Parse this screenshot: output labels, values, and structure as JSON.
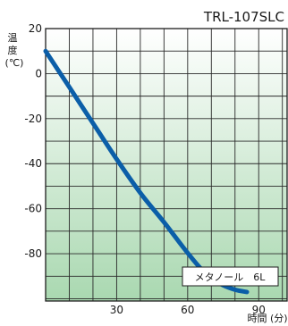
{
  "chart_data": {
    "type": "line",
    "title": "TRL-107SLC",
    "ylabel_chars": [
      "温",
      "度"
    ],
    "ylabel_unit": "(℃)",
    "xlabel": "時間 (分)",
    "xlim": [
      0,
      102
    ],
    "ylim": [
      -101,
      20
    ],
    "xticks": [
      30,
      60,
      90
    ],
    "yticks": [
      20,
      0,
      -20,
      -40,
      -60,
      -80
    ],
    "grid": true,
    "grid_x_step": 10,
    "grid_y_step": 10,
    "background_gradient": [
      "#ffffff",
      "#a9d8b0"
    ],
    "line_color": "#0b5ea8",
    "series": [
      {
        "name": "メタノール　6L",
        "x": [
          0,
          10,
          20,
          30,
          40,
          50,
          58,
          65,
          70,
          75,
          80,
          85
        ],
        "y": [
          10,
          -6,
          -22,
          -38,
          -53,
          -66,
          -77,
          -86,
          -91,
          -94,
          -96,
          -97
        ]
      }
    ]
  }
}
